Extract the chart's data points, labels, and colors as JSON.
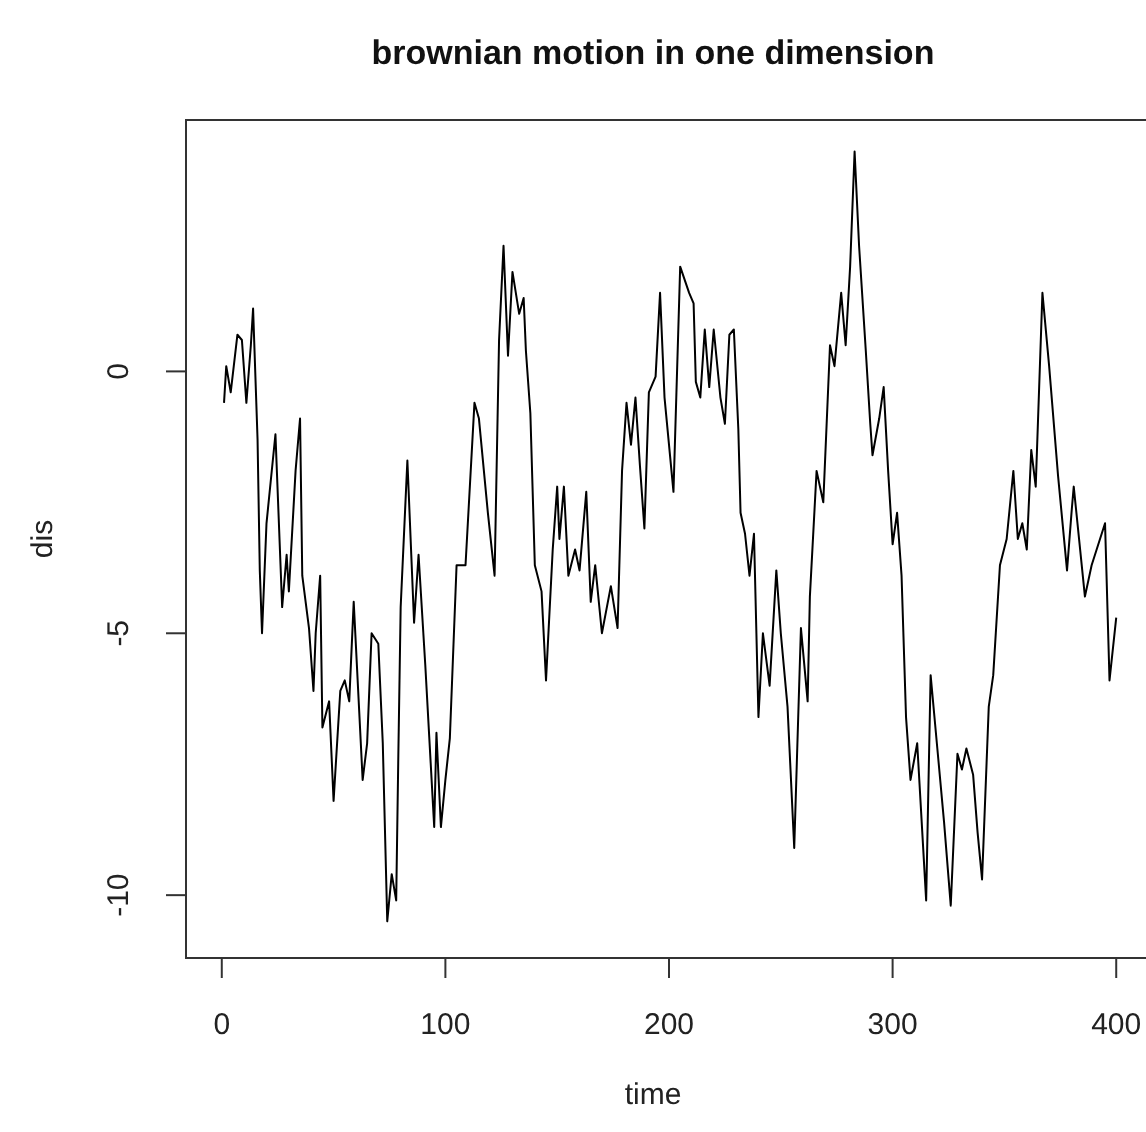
{
  "chart_data": {
    "type": "line",
    "title": "brownian motion in one dimension",
    "xlabel": "time",
    "ylabel": "dis",
    "xlim": [
      -16,
      416
    ],
    "ylim": [
      -11.2,
      4.8
    ],
    "xticks": [
      0,
      100,
      200,
      300,
      400
    ],
    "yticks": [
      -10,
      -5,
      0
    ],
    "grid": false,
    "marker": "none",
    "line_style": "solid",
    "series": [
      {
        "color": "#000000",
        "x": [
          1,
          2,
          4,
          7,
          9,
          11,
          13,
          14,
          16,
          17,
          18,
          20,
          24,
          26,
          27,
          29,
          30,
          33,
          35,
          36,
          39,
          41,
          42,
          44,
          45,
          48,
          50,
          53,
          55,
          57,
          59,
          63,
          65,
          67,
          70,
          72,
          74,
          76,
          78,
          79,
          80,
          83,
          86,
          88,
          91,
          95,
          96,
          98,
          100,
          102,
          105,
          109,
          113,
          115,
          119,
          122,
          124,
          126,
          128,
          130,
          133,
          135,
          136,
          138,
          140,
          143,
          145,
          148,
          150,
          151,
          153,
          155,
          158,
          160,
          163,
          165,
          167,
          170,
          174,
          177,
          179,
          181,
          183,
          185,
          187,
          189,
          191,
          194,
          196,
          198,
          202,
          205,
          209,
          211,
          212,
          214,
          216,
          218,
          220,
          223,
          225,
          227,
          229,
          231,
          232,
          234,
          236,
          238,
          240,
          242,
          245,
          248,
          250,
          253,
          256,
          259,
          262,
          263,
          266,
          269,
          272,
          274,
          277,
          279,
          281,
          283,
          285,
          288,
          290,
          291,
          294,
          296,
          298,
          300,
          302,
          304,
          306,
          308,
          311,
          315,
          317,
          320,
          323,
          326,
          329,
          331,
          333,
          336,
          338,
          340,
          343,
          345,
          348,
          351,
          354,
          356,
          358,
          360,
          362,
          364,
          367,
          370,
          374,
          378,
          380,
          381,
          386,
          389,
          395,
          397,
          400
        ],
        "values": [
          -0.6,
          0.1,
          -0.4,
          0.7,
          0.6,
          -0.6,
          0.5,
          1.2,
          -1.3,
          -3.8,
          -5.0,
          -2.9,
          -1.2,
          -3.4,
          -4.5,
          -3.5,
          -4.2,
          -1.9,
          -0.9,
          -3.9,
          -4.9,
          -6.1,
          -5.0,
          -3.9,
          -6.8,
          -6.3,
          -8.2,
          -6.1,
          -5.9,
          -6.3,
          -4.4,
          -7.8,
          -7.1,
          -5.0,
          -5.2,
          -7.1,
          -10.5,
          -9.6,
          -10.1,
          -7.2,
          -4.5,
          -1.7,
          -4.8,
          -3.5,
          -5.6,
          -8.7,
          -6.9,
          -8.7,
          -7.8,
          -7.0,
          -3.7,
          -3.7,
          -0.6,
          -0.9,
          -2.7,
          -3.9,
          0.6,
          2.4,
          0.3,
          1.9,
          1.1,
          1.4,
          0.4,
          -0.8,
          -3.7,
          -4.2,
          -5.9,
          -3.4,
          -2.2,
          -3.2,
          -2.2,
          -3.9,
          -3.4,
          -3.8,
          -2.3,
          -4.4,
          -3.7,
          -5.0,
          -4.1,
          -4.9,
          -1.9,
          -0.6,
          -1.4,
          -0.5,
          -1.8,
          -3.0,
          -0.4,
          -0.1,
          1.5,
          -0.5,
          -2.3,
          2.0,
          1.5,
          1.3,
          -0.2,
          -0.5,
          0.8,
          -0.3,
          0.8,
          -0.5,
          -1.0,
          0.7,
          0.8,
          -1.1,
          -2.7,
          -3.1,
          -3.9,
          -3.1,
          -6.6,
          -5.0,
          -6.0,
          -3.8,
          -5.0,
          -6.4,
          -9.1,
          -4.9,
          -6.3,
          -4.3,
          -1.9,
          -2.5,
          0.5,
          0.1,
          1.5,
          0.5,
          2.0,
          4.2,
          2.4,
          0.4,
          -1.0,
          -1.6,
          -0.9,
          -0.3,
          -1.9,
          -3.3,
          -2.7,
          -3.9,
          -6.6,
          -7.8,
          -7.1,
          -10.1,
          -5.8,
          -7.2,
          -8.6,
          -10.2,
          -7.3,
          -7.6,
          -7.2,
          -7.7,
          -8.8,
          -9.7,
          -6.4,
          -5.8,
          -3.7,
          -3.2,
          -1.9,
          -3.2,
          -2.9,
          -3.4,
          -1.5,
          -2.2,
          1.5,
          0.1,
          -2.0,
          -3.8,
          -2.7,
          -2.2,
          -4.3,
          -3.7,
          -2.9,
          -5.9,
          -4.7
        ]
      }
    ]
  }
}
